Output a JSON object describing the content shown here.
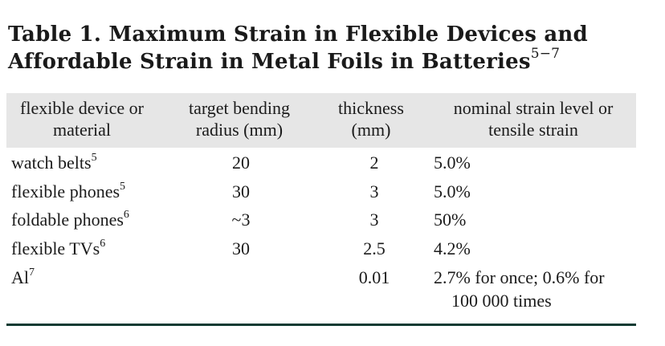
{
  "caption": {
    "title": "Table 1. Maximum Strain in Flexible Devices and Affordable Strain in Metal Foils in Batteries",
    "refs": "5−7"
  },
  "table": {
    "headers": [
      [
        "flexible device or",
        "material"
      ],
      [
        "target bending",
        "radius (mm)"
      ],
      [
        "thickness",
        "(mm)"
      ],
      [
        "nominal strain level or",
        "tensile strain"
      ]
    ],
    "rows": [
      {
        "device": "watch belts",
        "ref": "5",
        "radius": "20",
        "thickness": "2",
        "strain": "5.0%"
      },
      {
        "device": "flexible phones",
        "ref": "5",
        "radius": "30",
        "thickness": "3",
        "strain": "5.0%"
      },
      {
        "device": "foldable phones",
        "ref": "6",
        "radius": "~3",
        "thickness": "3",
        "strain": "50%"
      },
      {
        "device": "flexible TVs",
        "ref": "6",
        "radius": "30",
        "thickness": "2.5",
        "strain": "4.2%"
      },
      {
        "device": "Al",
        "ref": "7",
        "radius": "",
        "thickness": "0.01",
        "strain": "2.7% for once; 0.6% for",
        "strain_cont": "100 000 times"
      }
    ]
  },
  "colors": {
    "header_band": "#e6e6e6",
    "bottom_rule": "#0f3b33"
  }
}
